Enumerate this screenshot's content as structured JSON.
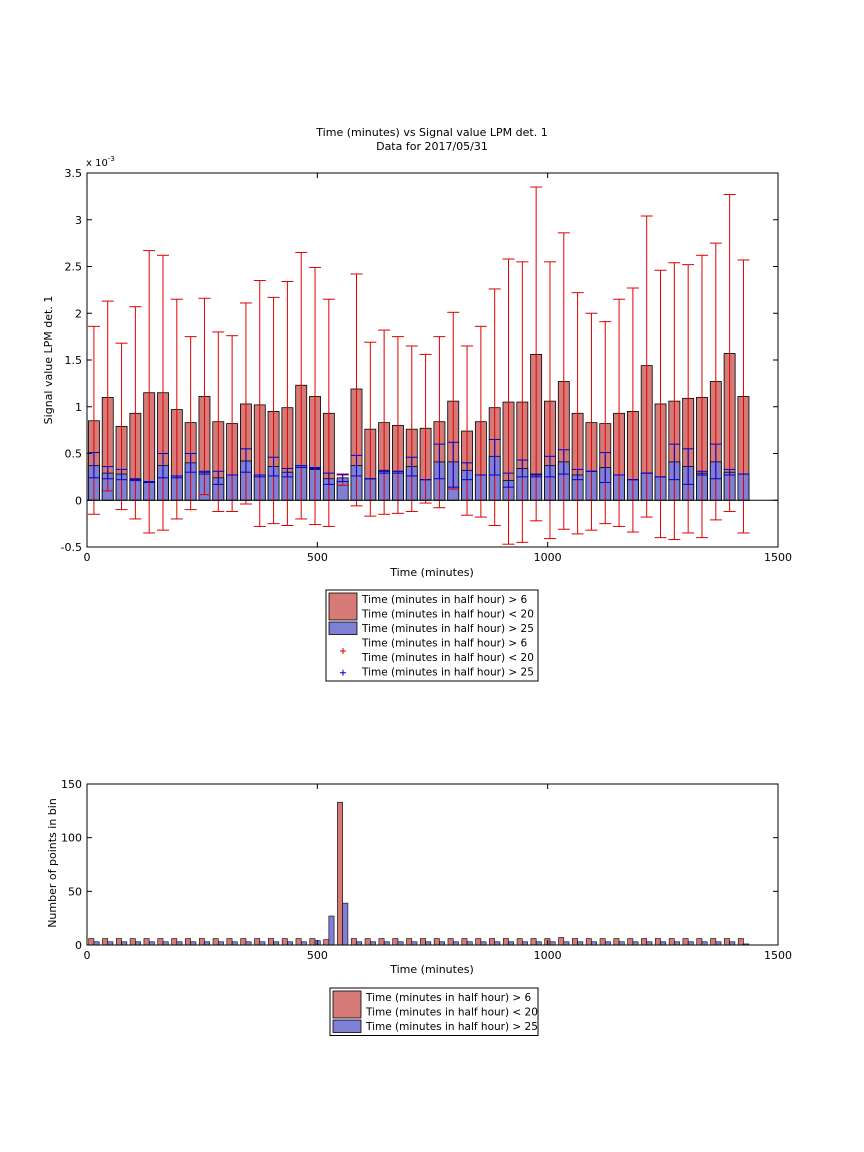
{
  "chart_data": [
    {
      "type": "bar",
      "title_lines": [
        "Time (minutes) vs Signal value LPM det. 1",
        "Data for 2017/05/31"
      ],
      "xlabel": "Time (minutes)",
      "ylabel": "Signal value LPM det. 1",
      "y_exponent_label": "x 10",
      "y_exponent_power": "-3",
      "xlim": [
        0,
        1500
      ],
      "ylim": [
        -0.5,
        3.5
      ],
      "x_ticks": [
        "0",
        "500",
        "1000",
        "1500"
      ],
      "y_ticks": [
        "-0.5",
        "0",
        "0.5",
        "1",
        "1.5",
        "2",
        "2.5",
        "3",
        "3.5"
      ],
      "grid": false,
      "legend_position": "below",
      "legend": [
        {
          "kind": "bar",
          "color": "#d67a78",
          "lines": [
            "Time (minutes in half hour) > 6",
            "Time (minutes in half hour) < 20"
          ]
        },
        {
          "kind": "bar",
          "color": "#7f7fd6",
          "lines": [
            "Time (minutes in half hour) > 25"
          ]
        },
        {
          "kind": "marker",
          "color": "#dd0000",
          "marker": "+",
          "lines": [
            "Time (minutes in half hour) > 6",
            "Time (minutes in half hour) < 20"
          ]
        },
        {
          "kind": "marker",
          "color": "#0000cc",
          "marker": "+",
          "lines": [
            "Time (minutes in half hour) > 25"
          ]
        }
      ],
      "x": [
        15,
        45,
        75,
        105,
        135,
        165,
        195,
        225,
        255,
        285,
        315,
        345,
        375,
        405,
        435,
        465,
        495,
        525,
        555,
        585,
        615,
        645,
        675,
        705,
        735,
        765,
        795,
        825,
        855,
        885,
        915,
        945,
        975,
        1005,
        1035,
        1065,
        1095,
        1125,
        1155,
        1185,
        1215,
        1245,
        1275,
        1305,
        1335,
        1365,
        1395,
        1425
      ],
      "series": [
        {
          "name": "Time (minutes in half hour) > 6",
          "name_line2": "Time (minutes in half hour) < 20",
          "color": "#d67a78",
          "values": [
            0.85,
            1.1,
            0.79,
            0.93,
            1.15,
            1.15,
            0.97,
            0.83,
            1.11,
            0.84,
            0.82,
            1.03,
            1.02,
            0.95,
            0.99,
            1.23,
            1.11,
            0.93,
            0.21,
            1.19,
            0.76,
            0.83,
            0.8,
            0.76,
            0.77,
            0.84,
            1.06,
            0.74,
            0.84,
            0.99,
            1.05,
            1.05,
            1.56,
            1.06,
            1.27,
            0.93,
            0.83,
            0.82,
            0.93,
            0.95,
            1.44,
            1.03,
            1.06,
            1.09,
            1.1,
            1.27,
            1.57,
            1.11
          ],
          "err_low": [
            -0.15,
            0.1,
            -0.1,
            -0.2,
            -0.35,
            -0.32,
            -0.2,
            -0.1,
            0.06,
            -0.12,
            -0.12,
            -0.04,
            -0.28,
            -0.25,
            -0.27,
            -0.2,
            -0.26,
            -0.28,
            0.16,
            -0.06,
            -0.17,
            -0.15,
            -0.14,
            -0.12,
            -0.03,
            -0.08,
            0.12,
            -0.16,
            -0.18,
            -0.27,
            -0.47,
            -0.45,
            -0.22,
            -0.41,
            -0.31,
            -0.36,
            -0.32,
            -0.25,
            -0.28,
            -0.34,
            -0.18,
            -0.4,
            -0.42,
            -0.35,
            -0.4,
            -0.21,
            -0.12,
            -0.35
          ],
          "err_high": [
            1.86,
            2.13,
            1.68,
            2.07,
            2.67,
            2.62,
            2.15,
            1.75,
            2.16,
            1.8,
            1.76,
            2.11,
            2.35,
            2.17,
            2.34,
            2.65,
            2.49,
            2.15,
            0.27,
            2.42,
            1.69,
            1.82,
            1.75,
            1.65,
            1.56,
            1.75,
            2.01,
            1.65,
            1.86,
            2.26,
            2.58,
            2.55,
            3.35,
            2.55,
            2.86,
            2.22,
            2.0,
            1.91,
            2.15,
            2.27,
            3.04,
            2.46,
            2.54,
            2.52,
            2.62,
            2.75,
            3.27,
            2.57
          ]
        },
        {
          "name": "Time (minutes in half hour) > 25",
          "color": "#7f7fd6",
          "values": [
            0.37,
            0.29,
            0.28,
            0.22,
            0.19,
            0.37,
            0.26,
            0.4,
            0.3,
            0.24,
            0.27,
            0.42,
            0.27,
            0.36,
            0.3,
            0.37,
            0.34,
            0.23,
            0.24,
            0.37,
            0.23,
            0.31,
            0.31,
            0.36,
            0.22,
            0.41,
            0.41,
            0.32,
            0.27,
            0.47,
            0.21,
            0.34,
            0.27,
            0.37,
            0.41,
            0.27,
            0.31,
            0.35,
            0.27,
            0.22,
            0.29,
            0.25,
            0.41,
            0.36,
            0.29,
            0.41,
            0.3,
            0.28
          ],
          "err_low": [
            0.24,
            0.23,
            0.22,
            0.21,
            0.2,
            0.24,
            0.24,
            0.3,
            0.28,
            0.17,
            0.27,
            0.3,
            0.25,
            0.26,
            0.25,
            0.35,
            0.33,
            0.17,
            0.2,
            0.26,
            0.23,
            0.29,
            0.29,
            0.26,
            0.22,
            0.23,
            0.14,
            0.22,
            0.27,
            0.27,
            0.14,
            0.25,
            0.25,
            0.25,
            0.28,
            0.22,
            0.31,
            0.19,
            0.27,
            0.22,
            0.29,
            0.25,
            0.22,
            0.17,
            0.27,
            0.23,
            0.27,
            0.28
          ],
          "err_high": [
            0.51,
            0.36,
            0.33,
            0.23,
            0.19,
            0.5,
            0.26,
            0.5,
            0.31,
            0.31,
            0.27,
            0.55,
            0.27,
            0.46,
            0.34,
            0.37,
            0.35,
            0.29,
            0.28,
            0.48,
            0.23,
            0.32,
            0.31,
            0.46,
            0.22,
            0.6,
            0.62,
            0.4,
            0.27,
            0.65,
            0.29,
            0.43,
            0.28,
            0.47,
            0.54,
            0.33,
            0.31,
            0.51,
            0.27,
            0.22,
            0.29,
            0.25,
            0.6,
            0.55,
            0.31,
            0.6,
            0.33,
            0.28
          ]
        }
      ]
    },
    {
      "type": "bar",
      "xlabel": "Time (minutes)",
      "ylabel": "Number of points in bin",
      "xlim": [
        0,
        1500
      ],
      "ylim": [
        0,
        150
      ],
      "x_ticks": [
        "0",
        "500",
        "1000",
        "1500"
      ],
      "y_ticks": [
        "0",
        "50",
        "100",
        "150"
      ],
      "grid": false,
      "legend_position": "below",
      "legend": [
        {
          "kind": "bar",
          "color": "#d67a78",
          "lines": [
            "Time (minutes in half hour) > 6",
            "Time (minutes in half hour) < 20"
          ]
        },
        {
          "kind": "bar",
          "color": "#7f7fd6",
          "lines": [
            "Time (minutes in half hour) > 25"
          ]
        }
      ],
      "x": [
        15,
        45,
        75,
        105,
        135,
        165,
        195,
        225,
        255,
        285,
        315,
        345,
        375,
        405,
        435,
        465,
        495,
        525,
        555,
        585,
        615,
        645,
        675,
        705,
        735,
        765,
        795,
        825,
        855,
        885,
        915,
        945,
        975,
        1005,
        1035,
        1065,
        1095,
        1125,
        1155,
        1185,
        1215,
        1245,
        1275,
        1305,
        1335,
        1365,
        1395,
        1425
      ],
      "series": [
        {
          "name": "Time (minutes in half hour) > 6",
          "name_line2": "Time (minutes in half hour) < 20",
          "color": "#d67a78",
          "values": [
            6,
            6,
            6,
            6,
            6,
            6,
            6,
            6,
            6,
            6,
            6,
            6,
            6,
            6,
            6,
            6,
            6,
            5,
            133,
            6,
            6,
            6,
            6,
            6,
            6,
            6,
            6,
            6,
            6,
            6,
            6,
            6,
            6,
            6,
            7,
            6,
            6,
            6,
            6,
            6,
            6,
            6,
            6,
            6,
            6,
            6,
            6,
            6
          ]
        },
        {
          "name": "Time (minutes in half hour) > 25",
          "color": "#7f7fd6",
          "values": [
            3,
            3,
            3,
            3,
            3,
            3,
            3,
            3,
            3,
            3,
            3,
            3,
            3,
            3,
            3,
            3,
            4,
            27,
            39,
            3,
            3,
            3,
            3,
            3,
            3,
            3,
            3,
            3,
            3,
            3,
            3,
            3,
            3,
            3,
            3,
            3,
            3,
            3,
            3,
            3,
            3,
            3,
            3,
            3,
            3,
            3,
            3,
            1
          ]
        }
      ]
    }
  ]
}
